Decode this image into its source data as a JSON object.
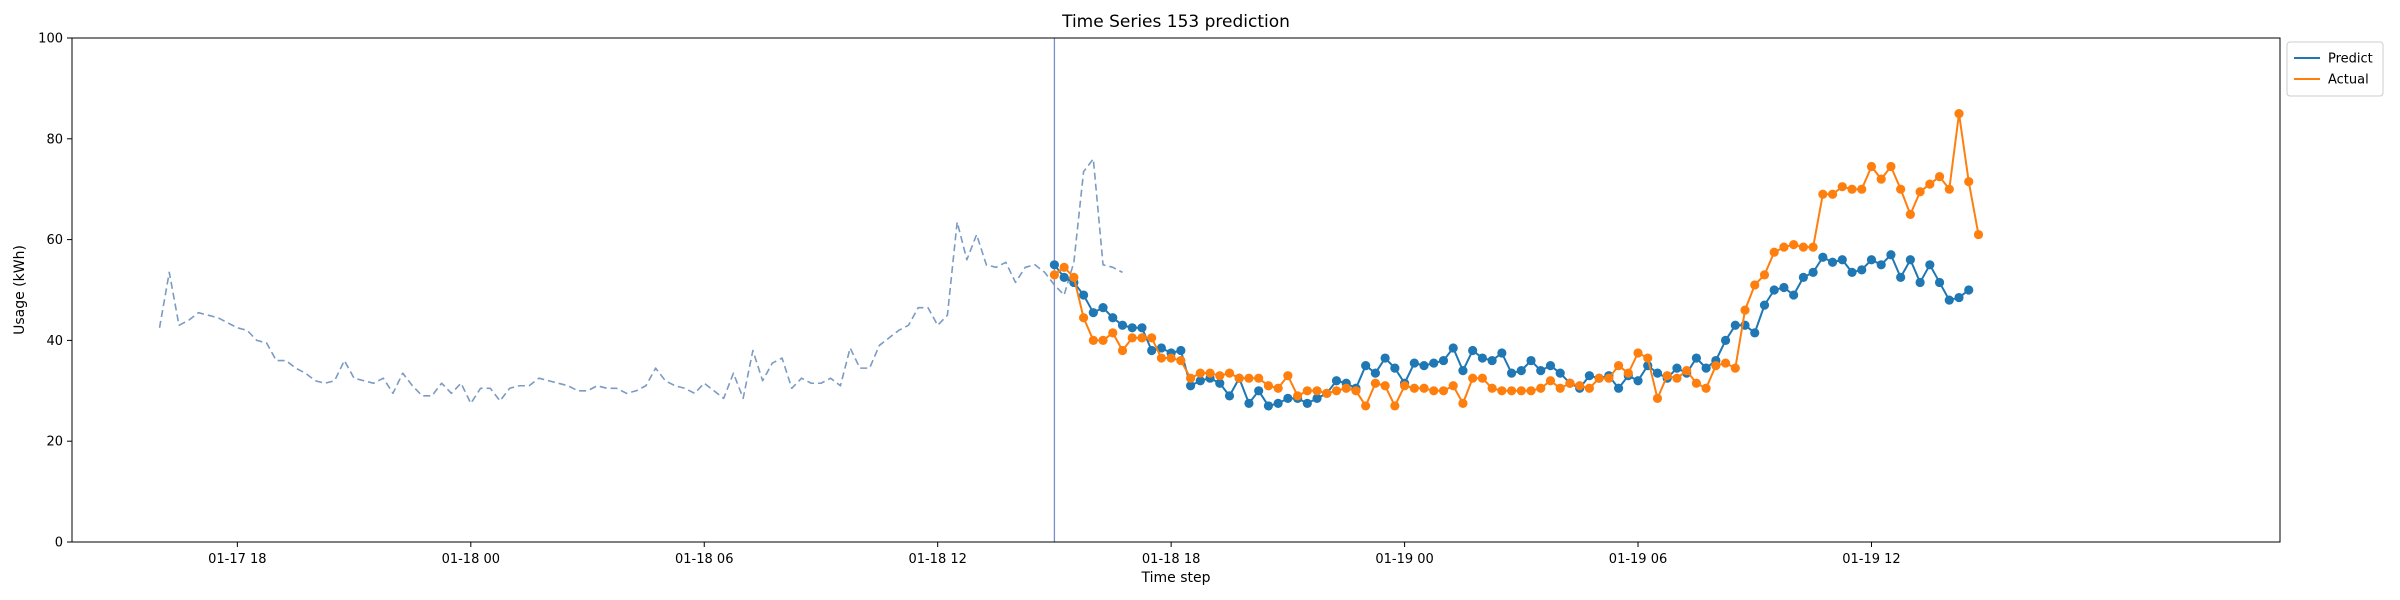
{
  "chart_data": {
    "type": "line",
    "title": "Time Series 153 prediction",
    "xlabel": "Time step",
    "ylabel": "Usage (kWh)",
    "ylim": [
      0,
      100
    ],
    "yticks": [
      0,
      20,
      40,
      60,
      80,
      100
    ],
    "xlim": [
      "2024-01-17 13:45",
      "2024-01-19 22:30"
    ],
    "xticks": [
      {
        "t": "2024-01-17 18:00",
        "label": "01-17 18"
      },
      {
        "t": "2024-01-18 00:00",
        "label": "01-18 00"
      },
      {
        "t": "2024-01-18 06:00",
        "label": "01-18 06"
      },
      {
        "t": "2024-01-18 12:00",
        "label": "01-18 12"
      },
      {
        "t": "2024-01-18 18:00",
        "label": "01-18 18"
      },
      {
        "t": "2024-01-19 00:00",
        "label": "01-19 00"
      },
      {
        "t": "2024-01-19 06:00",
        "label": "01-19 06"
      },
      {
        "t": "2024-01-19 12:00",
        "label": "01-19 12"
      }
    ],
    "interval_minutes": 15,
    "forecast_start": "2024-01-18 15:00",
    "legend_position": "outside-top-right",
    "grid": false,
    "series": [
      {
        "name": "",
        "role": "history",
        "style": "dashed",
        "color": "#7b9bc4",
        "start": "2024-01-17 16:00",
        "values": [
          42.5,
          53.5,
          43,
          44,
          45.5,
          45,
          44.5,
          43.5,
          42.5,
          42,
          40,
          39.5,
          36,
          36,
          34.5,
          33.5,
          32,
          31.5,
          32,
          36,
          32.5,
          32,
          31.5,
          32.5,
          29.5,
          33.5,
          31,
          29,
          29,
          31.5,
          29.5,
          31.5,
          27.5,
          30.5,
          30.5,
          28,
          30.5,
          31,
          31,
          32.5,
          32,
          31.5,
          31,
          30,
          30,
          31,
          30.5,
          30.5,
          29.5,
          30,
          31,
          34.5,
          32,
          31,
          30.5,
          29.5,
          31.5,
          30,
          28.5,
          33.5,
          28.5,
          38,
          32,
          35.5,
          36.5,
          30.5,
          32.5,
          31.5,
          31.5,
          32.5,
          31,
          38.5,
          34.5,
          34.5,
          39,
          40.5,
          42,
          43,
          46.5,
          46.5,
          43,
          45,
          63.5,
          56,
          61,
          55,
          54.5,
          55.5,
          51.5,
          54.5,
          55,
          53.5,
          51,
          49,
          55.5,
          73.5,
          76,
          55,
          54.5,
          53.5
        ]
      },
      {
        "name": "Predict",
        "role": "forecast",
        "color": "#1f77b4",
        "start": "2024-01-18 15:00",
        "values": [
          55,
          52.5,
          51.5,
          49,
          45.5,
          46.5,
          44.5,
          43,
          42.5,
          42.5,
          38,
          38.5,
          37.5,
          38,
          31,
          32,
          32.5,
          31.5,
          29,
          32.5,
          27.5,
          30,
          27,
          27.5,
          28.5,
          28.5,
          27.5,
          28.5,
          29.5,
          32,
          31.5,
          30.5,
          35,
          33.5,
          36.5,
          34.5,
          31.5,
          35.5,
          35,
          35.5,
          36,
          38.5,
          34,
          38,
          36.5,
          36,
          37.5,
          33.5,
          34,
          36,
          34,
          35,
          33.5,
          31.5,
          30.5,
          33,
          32.5,
          33,
          30.5,
          33,
          32,
          35,
          33.5,
          32.5,
          34.5,
          33.5,
          36.5,
          34.5,
          36,
          40,
          43,
          43,
          41.5,
          47,
          50,
          50.5,
          49,
          52.5,
          53.5,
          56.5,
          55.5,
          56,
          53.5,
          54,
          56,
          55,
          57,
          52.5,
          56,
          51.5,
          55,
          51.5,
          48,
          48.5,
          50
        ]
      },
      {
        "name": "Actual",
        "role": "actual",
        "color": "#ff7f0e",
        "start": "2024-01-18 15:00",
        "values": [
          53,
          54.5,
          52.5,
          44.5,
          40,
          40,
          41.5,
          38,
          40.5,
          40.5,
          40.5,
          36.5,
          36.5,
          36,
          32.5,
          33.5,
          33.5,
          33,
          33.5,
          32.5,
          32.5,
          32.5,
          31,
          30.5,
          33,
          29,
          30,
          30,
          29.5,
          30,
          30.5,
          30,
          27,
          31.5,
          31,
          27,
          31,
          30.5,
          30.5,
          30,
          30,
          31,
          27.5,
          32.5,
          32.5,
          30.5,
          30,
          30,
          30,
          30,
          30.5,
          32,
          30.5,
          31.5,
          31,
          30.5,
          32.5,
          32.5,
          35,
          33.5,
          37.5,
          36.5,
          28.5,
          33,
          32.5,
          34,
          31.5,
          30.5,
          35,
          35.5,
          34.5,
          46,
          51,
          53,
          57.5,
          58.5,
          59,
          58.5,
          58.5,
          69,
          69,
          70.5,
          70,
          70,
          74.5,
          72,
          74.5,
          70,
          65,
          69.5,
          71,
          72.5,
          70,
          85,
          71.5,
          61
        ]
      }
    ]
  }
}
